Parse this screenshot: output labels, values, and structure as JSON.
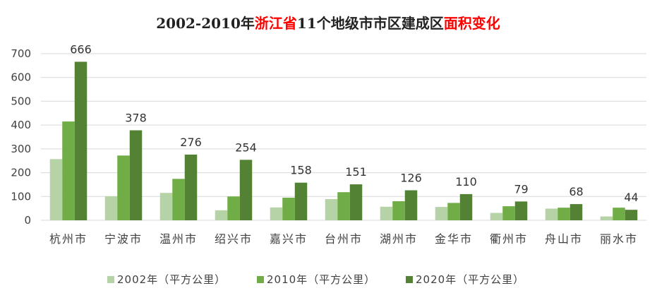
{
  "chart_data": {
    "type": "bar",
    "title_parts": [
      {
        "text": "2002-2010年",
        "accent": false
      },
      {
        "text": "浙江省",
        "accent": true
      },
      {
        "text": "11个地级市市区建成区",
        "accent": false
      },
      {
        "text": "面积变化",
        "accent": true
      }
    ],
    "categories": [
      "杭州市",
      "宁波市",
      "温州市",
      "绍兴市",
      "嘉兴市",
      "台州市",
      "湖州市",
      "金华市",
      "衢州市",
      "舟山市",
      "丽水市"
    ],
    "series": [
      {
        "name": "2002年（平方公里）",
        "color": "#b5d3a7",
        "values": [
          257,
          101,
          115,
          42,
          54,
          89,
          57,
          56,
          31,
          49,
          16
        ]
      },
      {
        "name": "2010年（平方公里）",
        "color": "#70ad47",
        "values": [
          415,
          272,
          174,
          100,
          95,
          118,
          80,
          73,
          59,
          53,
          53
        ]
      },
      {
        "name": "2020年（平方公里）",
        "color": "#548235",
        "values": [
          666,
          378,
          276,
          254,
          158,
          151,
          126,
          110,
          79,
          68,
          44
        ],
        "show_labels": true
      }
    ],
    "y_ticks": [
      0,
      100,
      200,
      300,
      400,
      500,
      600,
      700
    ],
    "ylim": [
      0,
      700
    ],
    "grid": true,
    "legend_position": "bottom"
  }
}
